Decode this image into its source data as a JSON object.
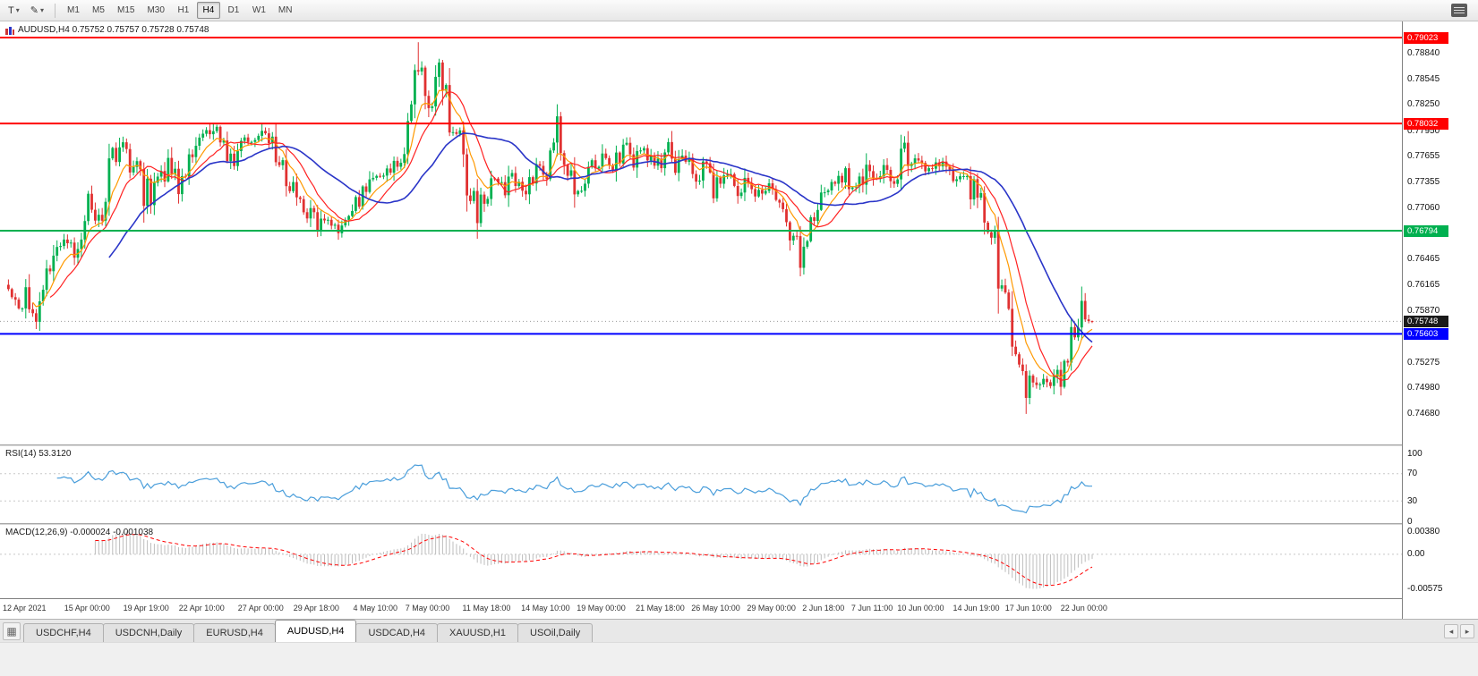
{
  "toolbar": {
    "timeframes": [
      "M1",
      "M5",
      "M15",
      "M30",
      "H1",
      "H4",
      "D1",
      "W1",
      "MN"
    ],
    "active_timeframe": "H4",
    "icons": {
      "text_tool": "T",
      "draw_tool": "✎",
      "caret": "▾",
      "tab_list": "▦",
      "arrow_left": "◂",
      "arrow_right": "▸"
    }
  },
  "chart": {
    "title": "AUDUSD,H4 0.75752 0.75757 0.75728 0.75748",
    "symbol": "AUDUSD",
    "timeframe": "H4",
    "ohlc": {
      "open": "0.75752",
      "high": "0.75757",
      "low": "0.75728",
      "close": "0.75748"
    },
    "y_axis_labels": [
      "0.78840",
      "0.78545",
      "0.78250",
      "0.77950",
      "0.77655",
      "0.77355",
      "0.77060",
      "0.76465",
      "0.76165",
      "0.75870",
      "0.75275",
      "0.74980",
      "0.74680"
    ],
    "hlines": [
      {
        "price": 0.79023,
        "label": "0.79023",
        "color": "#ff0000",
        "width": 2
      },
      {
        "price": 0.78032,
        "label": "0.78032",
        "color": "#ff0000",
        "width": 2
      },
      {
        "price": 0.76794,
        "label": "0.76794",
        "color": "#00b050",
        "width": 2
      },
      {
        "price": 0.75603,
        "label": "0.75603",
        "color": "#0000ff",
        "width": 2
      }
    ],
    "current_price": {
      "value": 0.75748,
      "label": "0.75748",
      "box_color": "#1a1a1a"
    }
  },
  "rsi_panel": {
    "label": "RSI(14) 53.3120",
    "levels": [
      {
        "text": "100",
        "value": 100
      },
      {
        "text": "70",
        "value": 70
      },
      {
        "text": "30",
        "value": 30
      },
      {
        "text": "0",
        "value": 0
      }
    ]
  },
  "macd_panel": {
    "label": "MACD(12,26,9) -0.000024 -0.001038",
    "levels": [
      {
        "text": "0.00380",
        "value": 0.0038
      },
      {
        "text": "0.00",
        "value": 0
      },
      {
        "text": "-0.00575",
        "value": -0.00575
      }
    ]
  },
  "bottom_tabs": {
    "tabs": [
      "USDCHF,H4",
      "USDCNH,Daily",
      "EURUSD,H4",
      "AUDUSD,H4",
      "USDCAD,H4",
      "XAUUSD,H1",
      "USOil,Daily"
    ],
    "active": "AUDUSD,H4"
  },
  "colors": {
    "bull": "#00b050",
    "bear": "#e03131",
    "ma_fast": "#ff9900",
    "ma_mid": "#ff2222",
    "ma_slow": "#2a35c8",
    "rsi": "#4a9edb",
    "rsi_level": "#c8c8c8",
    "macd_hist": "#bdbdbd",
    "macd_signal": "#ff0000",
    "current_line": "#9a9a9a"
  },
  "chart_data": {
    "type": "candlestick",
    "symbol": "AUDUSD",
    "timeframe": "H4",
    "num_candles": 313,
    "first_open": 0.7617,
    "ylim": [
      0.74328,
      0.79209
    ],
    "last_candle": {
      "o": 0.75752,
      "h": 0.75757,
      "l": 0.75728,
      "c": 0.75748
    },
    "waypoints": [
      [
        0,
        0.7612
      ],
      [
        3,
        0.759
      ],
      [
        5,
        0.7605
      ],
      [
        7,
        0.7577
      ],
      [
        10,
        0.7601
      ],
      [
        13,
        0.7645
      ],
      [
        16,
        0.7668
      ],
      [
        19,
        0.7652
      ],
      [
        23,
        0.7705
      ],
      [
        26,
        0.7692
      ],
      [
        29,
        0.775
      ],
      [
        31,
        0.777
      ],
      [
        34,
        0.7776
      ],
      [
        37,
        0.7752
      ],
      [
        40,
        0.7712
      ],
      [
        43,
        0.773
      ],
      [
        46,
        0.7757
      ],
      [
        49,
        0.7724
      ],
      [
        52,
        0.776
      ],
      [
        56,
        0.7786
      ],
      [
        59,
        0.78
      ],
      [
        62,
        0.7768
      ],
      [
        64,
        0.7748
      ],
      [
        67,
        0.7772
      ],
      [
        70,
        0.779
      ],
      [
        73,
        0.7802
      ],
      [
        75,
        0.7788
      ],
      [
        79,
        0.775
      ],
      [
        82,
        0.7728
      ],
      [
        86,
        0.7704
      ],
      [
        89,
        0.769
      ],
      [
        92,
        0.77
      ],
      [
        95,
        0.7684
      ],
      [
        98,
        0.7705
      ],
      [
        101,
        0.7716
      ],
      [
        106,
        0.774
      ],
      [
        110,
        0.7752
      ],
      [
        114,
        0.7765
      ],
      [
        116,
        0.7822
      ],
      [
        118,
        0.788
      ],
      [
        120,
        0.7846
      ],
      [
        122,
        0.7815
      ],
      [
        124,
        0.7856
      ],
      [
        126,
        0.784
      ],
      [
        128,
        0.7792
      ],
      [
        130,
        0.7802
      ],
      [
        132,
        0.7742
      ],
      [
        135,
        0.77
      ],
      [
        138,
        0.7726
      ],
      [
        140,
        0.7741
      ],
      [
        143,
        0.7718
      ],
      [
        146,
        0.7746
      ],
      [
        149,
        0.7731
      ],
      [
        152,
        0.7749
      ],
      [
        155,
        0.7736
      ],
      [
        156,
        0.7778
      ],
      [
        158,
        0.7797
      ],
      [
        161,
        0.7751
      ],
      [
        164,
        0.7713
      ],
      [
        167,
        0.7744
      ],
      [
        171,
        0.777
      ],
      [
        174,
        0.7753
      ],
      [
        177,
        0.7772
      ],
      [
        180,
        0.7758
      ],
      [
        183,
        0.7774
      ],
      [
        186,
        0.7753
      ],
      [
        189,
        0.7766
      ],
      [
        192,
        0.7748
      ],
      [
        195,
        0.7769
      ],
      [
        198,
        0.7743
      ],
      [
        201,
        0.7756
      ],
      [
        204,
        0.7729
      ],
      [
        207,
        0.7742
      ],
      [
        210,
        0.7723
      ],
      [
        213,
        0.7739
      ],
      [
        216,
        0.7719
      ],
      [
        220,
        0.7729
      ],
      [
        223,
        0.7713
      ],
      [
        226,
        0.7672
      ],
      [
        228,
        0.7649
      ],
      [
        230,
        0.7669
      ],
      [
        232,
        0.7711
      ],
      [
        235,
        0.7722
      ],
      [
        238,
        0.7731
      ],
      [
        241,
        0.7741
      ],
      [
        244,
        0.7729
      ],
      [
        247,
        0.7746
      ],
      [
        249,
        0.7739
      ],
      [
        252,
        0.7753
      ],
      [
        255,
        0.7739
      ],
      [
        258,
        0.7768
      ],
      [
        261,
        0.7753
      ],
      [
        263,
        0.7761
      ],
      [
        266,
        0.7749
      ],
      [
        269,
        0.7756
      ],
      [
        272,
        0.7739
      ],
      [
        275,
        0.7743
      ],
      [
        278,
        0.7729
      ],
      [
        279,
        0.7719
      ],
      [
        281,
        0.7699
      ],
      [
        283,
        0.7661
      ],
      [
        284,
        0.7673
      ],
      [
        285,
        0.7626
      ],
      [
        287,
        0.7591
      ],
      [
        289,
        0.7546
      ],
      [
        291,
        0.7521
      ],
      [
        293,
        0.7497
      ],
      [
        295,
        0.7511
      ],
      [
        297,
        0.7489
      ],
      [
        299,
        0.7506
      ],
      [
        301,
        0.7521
      ],
      [
        303,
        0.7509
      ],
      [
        305,
        0.7531
      ],
      [
        307,
        0.7553
      ],
      [
        309,
        0.7583
      ],
      [
        310,
        0.7567
      ],
      [
        312,
        0.75748
      ]
    ],
    "spikes": [
      {
        "i": 59,
        "high": 0.78035
      },
      {
        "i": 73,
        "high": 0.7803
      },
      {
        "i": 95,
        "low": 0.7669
      },
      {
        "i": 118,
        "high": 0.7897
      },
      {
        "i": 228,
        "low": 0.764
      },
      {
        "i": 293,
        "low": 0.7468
      },
      {
        "i": 309,
        "high": 0.7589
      }
    ],
    "x_labels": [
      [
        "12 Apr 2021",
        0
      ],
      [
        "15 Apr 00:00",
        23
      ],
      [
        "19 Apr 19:00",
        40
      ],
      [
        "22 Apr 10:00",
        56
      ],
      [
        "27 Apr 00:00",
        73
      ],
      [
        "29 Apr 18:00",
        89
      ],
      [
        "4 May 10:00",
        106
      ],
      [
        "7 May 00:00",
        121
      ],
      [
        "11 May 18:00",
        138
      ],
      [
        "14 May 10:00",
        155
      ],
      [
        "19 May 00:00",
        171
      ],
      [
        "21 May 18:00",
        188
      ],
      [
        "26 May 10:00",
        204
      ],
      [
        "29 May 00:00",
        220
      ],
      [
        "2 Jun 18:00",
        235
      ],
      [
        "7 Jun 11:00",
        249
      ],
      [
        "10 Jun 00:00",
        263
      ],
      [
        "14 Jun 19:00",
        279
      ],
      [
        "17 Jun 10:00",
        294
      ],
      [
        "22 Jun 00:00",
        310
      ]
    ],
    "indicators": {
      "moving_averages": [
        {
          "name": "fast",
          "type": "ema",
          "period": 8,
          "color": "#ff9900"
        },
        {
          "name": "mid",
          "type": "sma",
          "period": 13,
          "color": "#ff2222"
        },
        {
          "name": "slow",
          "type": "sma",
          "period": 30,
          "color": "#2a35c8"
        }
      ],
      "rsi": {
        "period": 14,
        "value": "53.3120",
        "range": [
          0,
          100
        ],
        "levels": [
          70,
          30
        ]
      },
      "macd": {
        "fast": 12,
        "slow": 26,
        "signal": 9,
        "values": [
          "-0.000024",
          "-0.001038"
        ],
        "axis_range": [
          0.0049,
          -0.0073
        ]
      }
    }
  }
}
